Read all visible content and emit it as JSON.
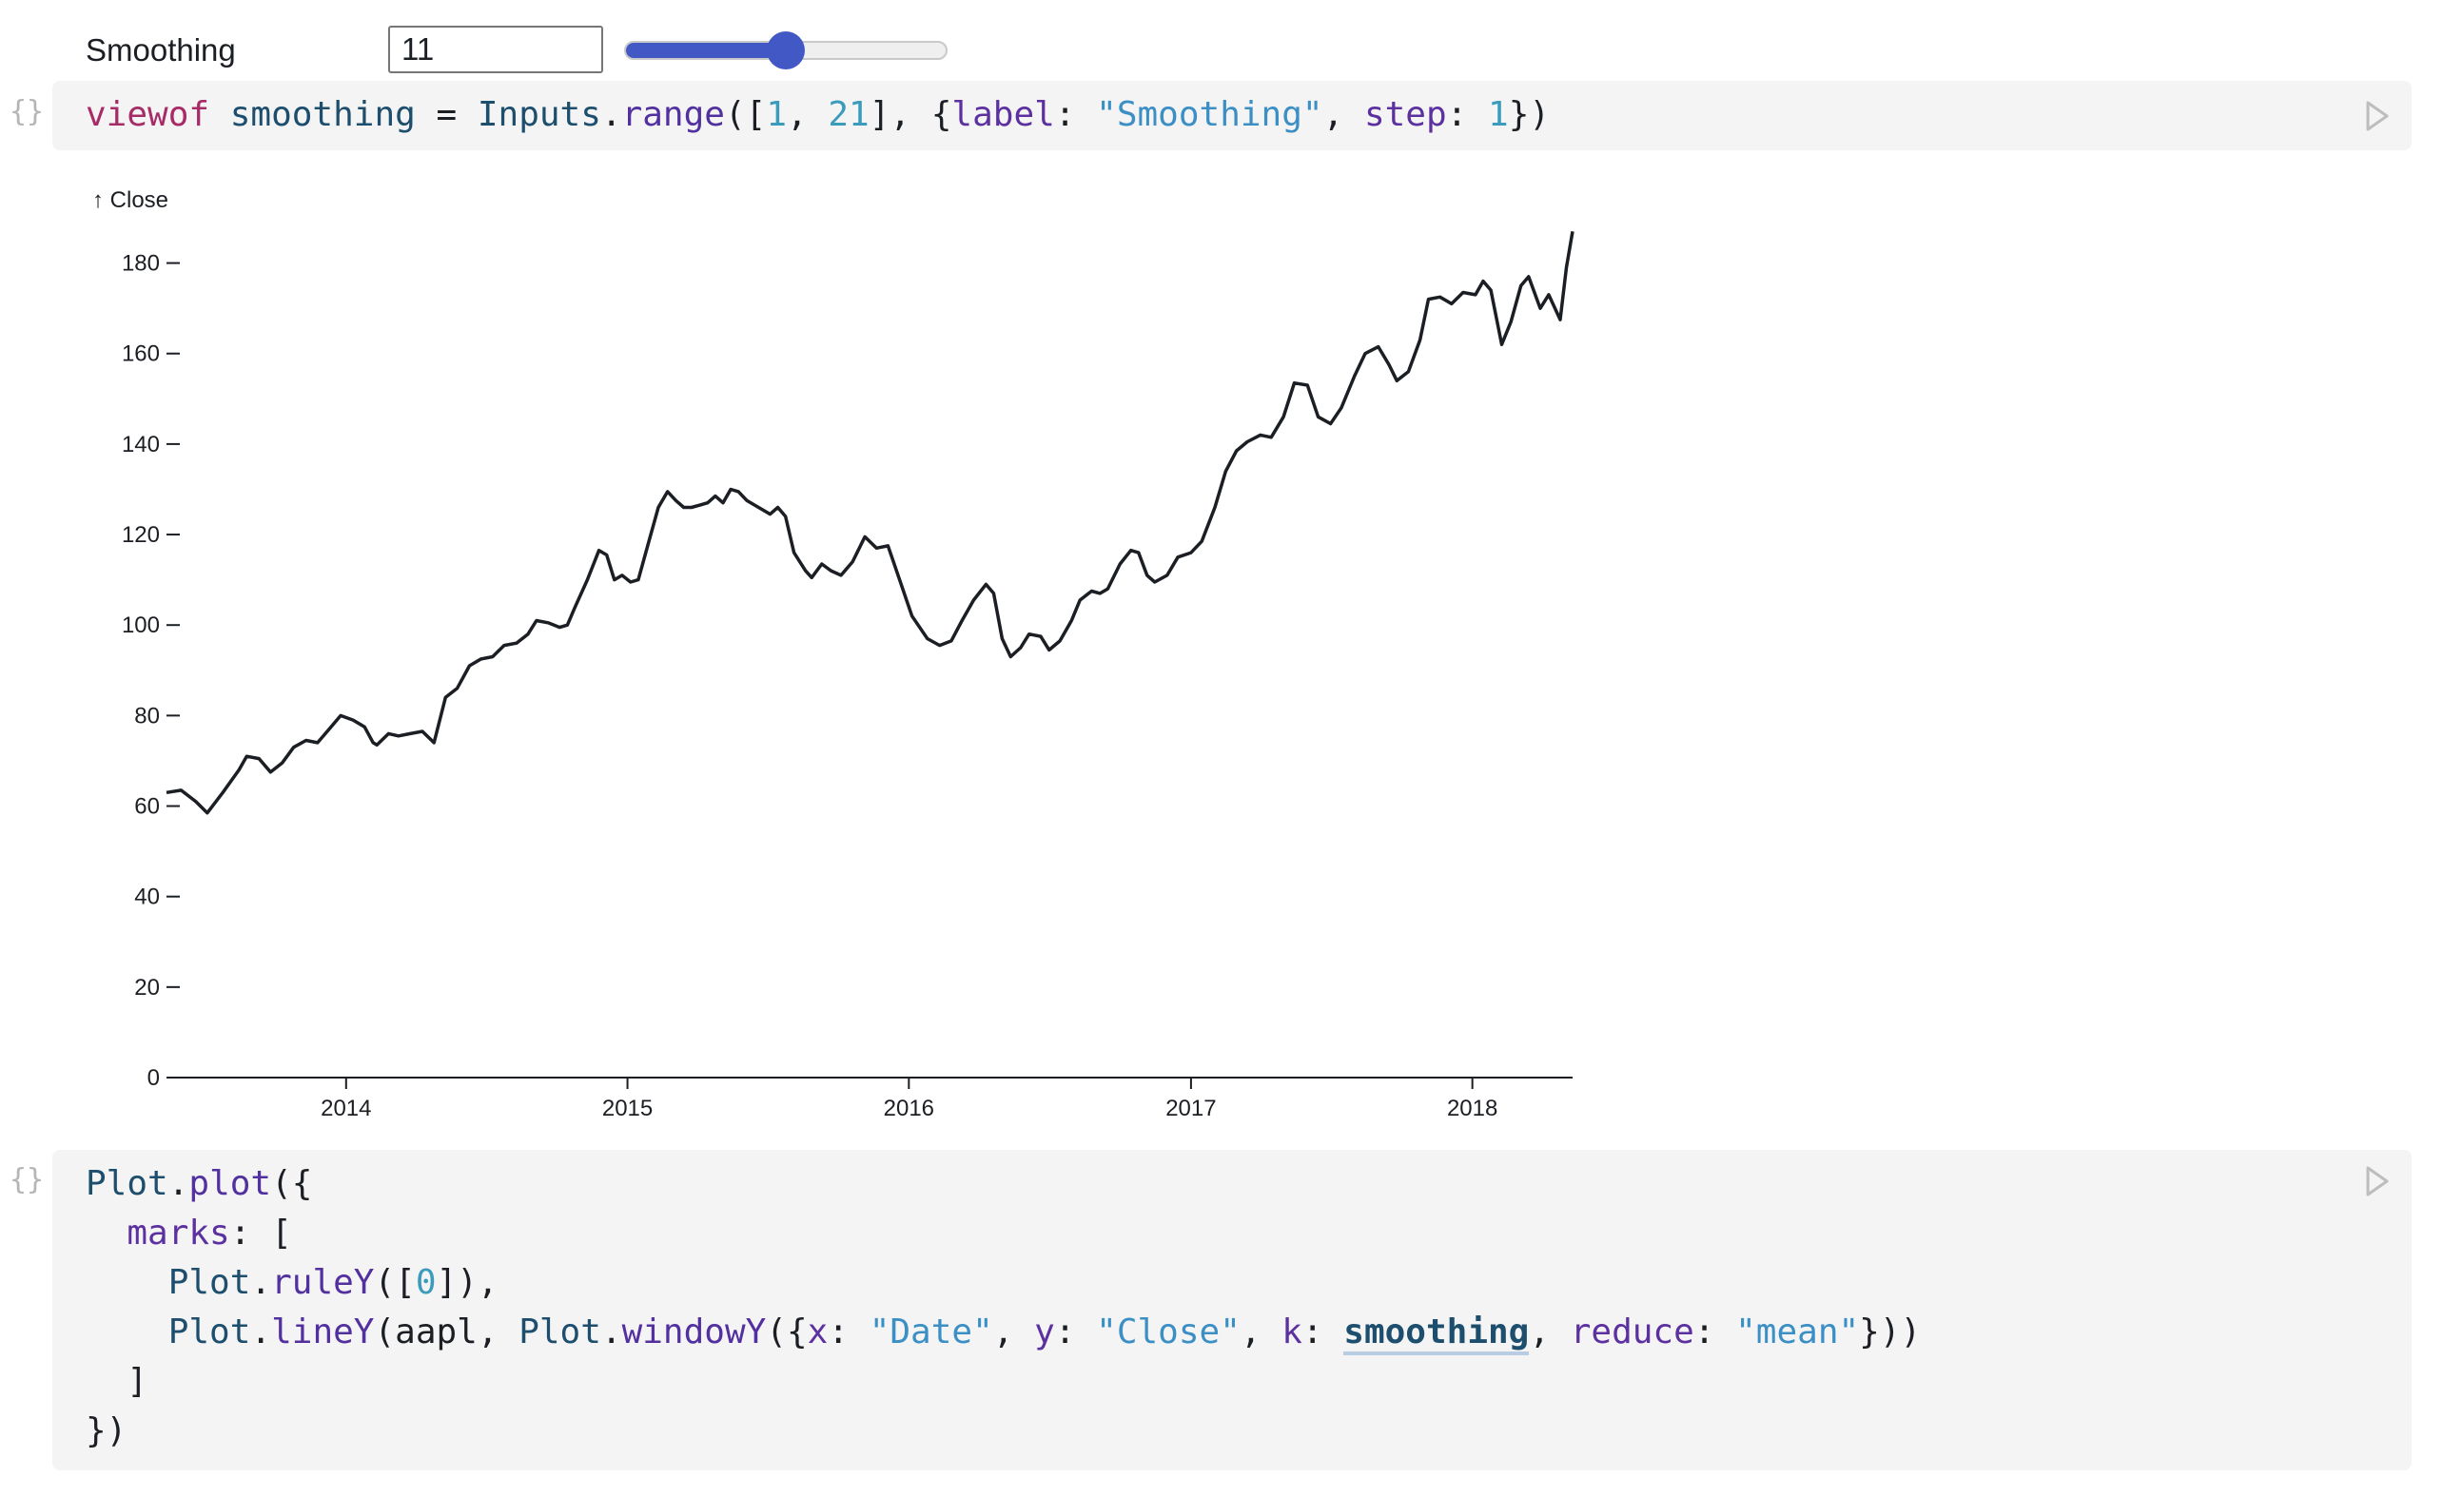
{
  "input": {
    "label": "Smoothing",
    "value": "11",
    "min": 1,
    "max": 21,
    "fraction": 0.5
  },
  "cell1": {
    "icon": "{}",
    "code": {
      "t1": "viewof",
      "t2": " ",
      "t3": "smoothing",
      "t4": " = ",
      "t5": "Inputs",
      "t6": ".",
      "t7": "range",
      "t8": "([",
      "t9": "1",
      "t10": ", ",
      "t11": "21",
      "t12": "], {",
      "t13": "label",
      "t14": ": ",
      "t15": "\"Smoothing\"",
      "t16": ", ",
      "t17": "step",
      "t18": ": ",
      "t19": "1",
      "t20": "})"
    }
  },
  "cell2": {
    "icon": "{}",
    "line1": {
      "a": "Plot",
      "b": ".",
      "c": "plot",
      "d": "({"
    },
    "line2": {
      "a": "  ",
      "b": "marks",
      "c": ": ["
    },
    "line3": {
      "a": "    ",
      "b": "Plot",
      "c": ".",
      "d": "ruleY",
      "e": "([",
      "f": "0",
      "g": "]),"
    },
    "line4": {
      "a": "    ",
      "b": "Plot",
      "c": ".",
      "d": "lineY",
      "e": "(aapl, ",
      "f": "Plot",
      "g": ".",
      "h": "windowY",
      "i": "({",
      "j": "x",
      "k": ": ",
      "l": "\"Date\"",
      "m": ", ",
      "n": "y",
      "o": ": ",
      "p": "\"Close\"",
      "q": ", ",
      "r": "k",
      "s": ": ",
      "t": "smoothing",
      "u": ", ",
      "v": "reduce",
      "w": ": ",
      "x": "\"mean\"",
      "y": "}))"
    },
    "line5": {
      "a": "  ]"
    },
    "line6": {
      "a": "})"
    }
  },
  "chart_data": {
    "type": "line",
    "ylabel": "↑ Close",
    "ylim": [
      0,
      190
    ],
    "yticks": [
      0,
      20,
      40,
      60,
      80,
      100,
      120,
      140,
      160,
      180
    ],
    "xlim": [
      "2013-05-13",
      "2018-05-11"
    ],
    "xticks": [
      "2014",
      "2015",
      "2016",
      "2017",
      "2018"
    ],
    "grid": false,
    "series": [
      {
        "points": [
          [
            "2013-05-13",
            63
          ],
          [
            "2013-06-01",
            63.5
          ],
          [
            "2013-06-20",
            61
          ],
          [
            "2013-07-05",
            58.5
          ],
          [
            "2013-07-25",
            63
          ],
          [
            "2013-08-15",
            68
          ],
          [
            "2013-08-25",
            71
          ],
          [
            "2013-09-10",
            70.5
          ],
          [
            "2013-09-25",
            67.5
          ],
          [
            "2013-10-10",
            69.5
          ],
          [
            "2013-10-25",
            73
          ],
          [
            "2013-11-10",
            74.5
          ],
          [
            "2013-11-25",
            74
          ],
          [
            "2013-12-10",
            77
          ],
          [
            "2013-12-25",
            80
          ],
          [
            "2014-01-10",
            79
          ],
          [
            "2014-01-25",
            77.5
          ],
          [
            "2014-02-05",
            74
          ],
          [
            "2014-02-10",
            73.5
          ],
          [
            "2014-02-25",
            76
          ],
          [
            "2014-03-10",
            75.5
          ],
          [
            "2014-03-25",
            76
          ],
          [
            "2014-04-10",
            76.5
          ],
          [
            "2014-04-25",
            74
          ],
          [
            "2014-05-10",
            84
          ],
          [
            "2014-05-25",
            86
          ],
          [
            "2014-06-10",
            91
          ],
          [
            "2014-06-25",
            92.5
          ],
          [
            "2014-07-10",
            93
          ],
          [
            "2014-07-25",
            95.5
          ],
          [
            "2014-08-10",
            96
          ],
          [
            "2014-08-25",
            98
          ],
          [
            "2014-09-05",
            101
          ],
          [
            "2014-09-20",
            100.5
          ],
          [
            "2014-10-05",
            99.5
          ],
          [
            "2014-10-15",
            100
          ],
          [
            "2014-10-25",
            104
          ],
          [
            "2014-11-10",
            110
          ],
          [
            "2014-11-25",
            116.5
          ],
          [
            "2014-12-05",
            115.5
          ],
          [
            "2014-12-15",
            110
          ],
          [
            "2014-12-25",
            111
          ],
          [
            "2015-01-05",
            109.5
          ],
          [
            "2015-01-15",
            110
          ],
          [
            "2015-01-28",
            118
          ],
          [
            "2015-02-10",
            126
          ],
          [
            "2015-02-22",
            129.5
          ],
          [
            "2015-03-05",
            127.5
          ],
          [
            "2015-03-15",
            126
          ],
          [
            "2015-03-25",
            126
          ],
          [
            "2015-04-05",
            126.5
          ],
          [
            "2015-04-15",
            127
          ],
          [
            "2015-04-25",
            128.5
          ],
          [
            "2015-05-05",
            127
          ],
          [
            "2015-05-15",
            130
          ],
          [
            "2015-05-25",
            129.5
          ],
          [
            "2015-06-05",
            127.5
          ],
          [
            "2015-06-15",
            126.5
          ],
          [
            "2015-06-25",
            125.5
          ],
          [
            "2015-07-05",
            124.5
          ],
          [
            "2015-07-15",
            126
          ],
          [
            "2015-07-25",
            124
          ],
          [
            "2015-08-05",
            116
          ],
          [
            "2015-08-20",
            112
          ],
          [
            "2015-08-28",
            110.5
          ],
          [
            "2015-09-10",
            113.5
          ],
          [
            "2015-09-22",
            112
          ],
          [
            "2015-10-05",
            111
          ],
          [
            "2015-10-20",
            114
          ],
          [
            "2015-11-05",
            119.5
          ],
          [
            "2015-11-20",
            117
          ],
          [
            "2015-12-05",
            117.5
          ],
          [
            "2015-12-20",
            110
          ],
          [
            "2016-01-05",
            102
          ],
          [
            "2016-01-25",
            97
          ],
          [
            "2016-02-10",
            95.5
          ],
          [
            "2016-02-25",
            96.5
          ],
          [
            "2016-03-10",
            101
          ],
          [
            "2016-03-25",
            105.5
          ],
          [
            "2016-04-10",
            109
          ],
          [
            "2016-04-20",
            107
          ],
          [
            "2016-05-01",
            97
          ],
          [
            "2016-05-12",
            93
          ],
          [
            "2016-05-25",
            95
          ],
          [
            "2016-06-05",
            98
          ],
          [
            "2016-06-20",
            97.5
          ],
          [
            "2016-07-01",
            94.5
          ],
          [
            "2016-07-15",
            96.5
          ],
          [
            "2016-07-30",
            101
          ],
          [
            "2016-08-10",
            105.5
          ],
          [
            "2016-08-25",
            107.5
          ],
          [
            "2016-09-05",
            107
          ],
          [
            "2016-09-15",
            108
          ],
          [
            "2016-10-01",
            113.5
          ],
          [
            "2016-10-15",
            116.5
          ],
          [
            "2016-10-25",
            116
          ],
          [
            "2016-11-05",
            111
          ],
          [
            "2016-11-15",
            109.5
          ],
          [
            "2016-12-01",
            111
          ],
          [
            "2016-12-15",
            115
          ],
          [
            "2017-01-01",
            116
          ],
          [
            "2017-01-15",
            118.5
          ],
          [
            "2017-02-01",
            126
          ],
          [
            "2017-02-15",
            134
          ],
          [
            "2017-03-01",
            138.5
          ],
          [
            "2017-03-15",
            140.5
          ],
          [
            "2017-04-01",
            142
          ],
          [
            "2017-04-15",
            141.5
          ],
          [
            "2017-05-01",
            146
          ],
          [
            "2017-05-15",
            153.5
          ],
          [
            "2017-06-01",
            153
          ],
          [
            "2017-06-15",
            146
          ],
          [
            "2017-07-01",
            144.5
          ],
          [
            "2017-07-15",
            148
          ],
          [
            "2017-08-01",
            155
          ],
          [
            "2017-08-15",
            160
          ],
          [
            "2017-09-01",
            161.5
          ],
          [
            "2017-09-15",
            157.5
          ],
          [
            "2017-09-25",
            154
          ],
          [
            "2017-10-10",
            156
          ],
          [
            "2017-10-25",
            163
          ],
          [
            "2017-11-05",
            172
          ],
          [
            "2017-11-20",
            172.5
          ],
          [
            "2017-12-05",
            171
          ],
          [
            "2017-12-20",
            173.5
          ],
          [
            "2018-01-05",
            173
          ],
          [
            "2018-01-15",
            176
          ],
          [
            "2018-01-25",
            174
          ],
          [
            "2018-02-08",
            162
          ],
          [
            "2018-02-20",
            167
          ],
          [
            "2018-03-05",
            175
          ],
          [
            "2018-03-15",
            177
          ],
          [
            "2018-03-30",
            170
          ],
          [
            "2018-04-10",
            173
          ],
          [
            "2018-04-25",
            167.5
          ],
          [
            "2018-05-03",
            179
          ],
          [
            "2018-05-11",
            187
          ]
        ]
      }
    ]
  }
}
